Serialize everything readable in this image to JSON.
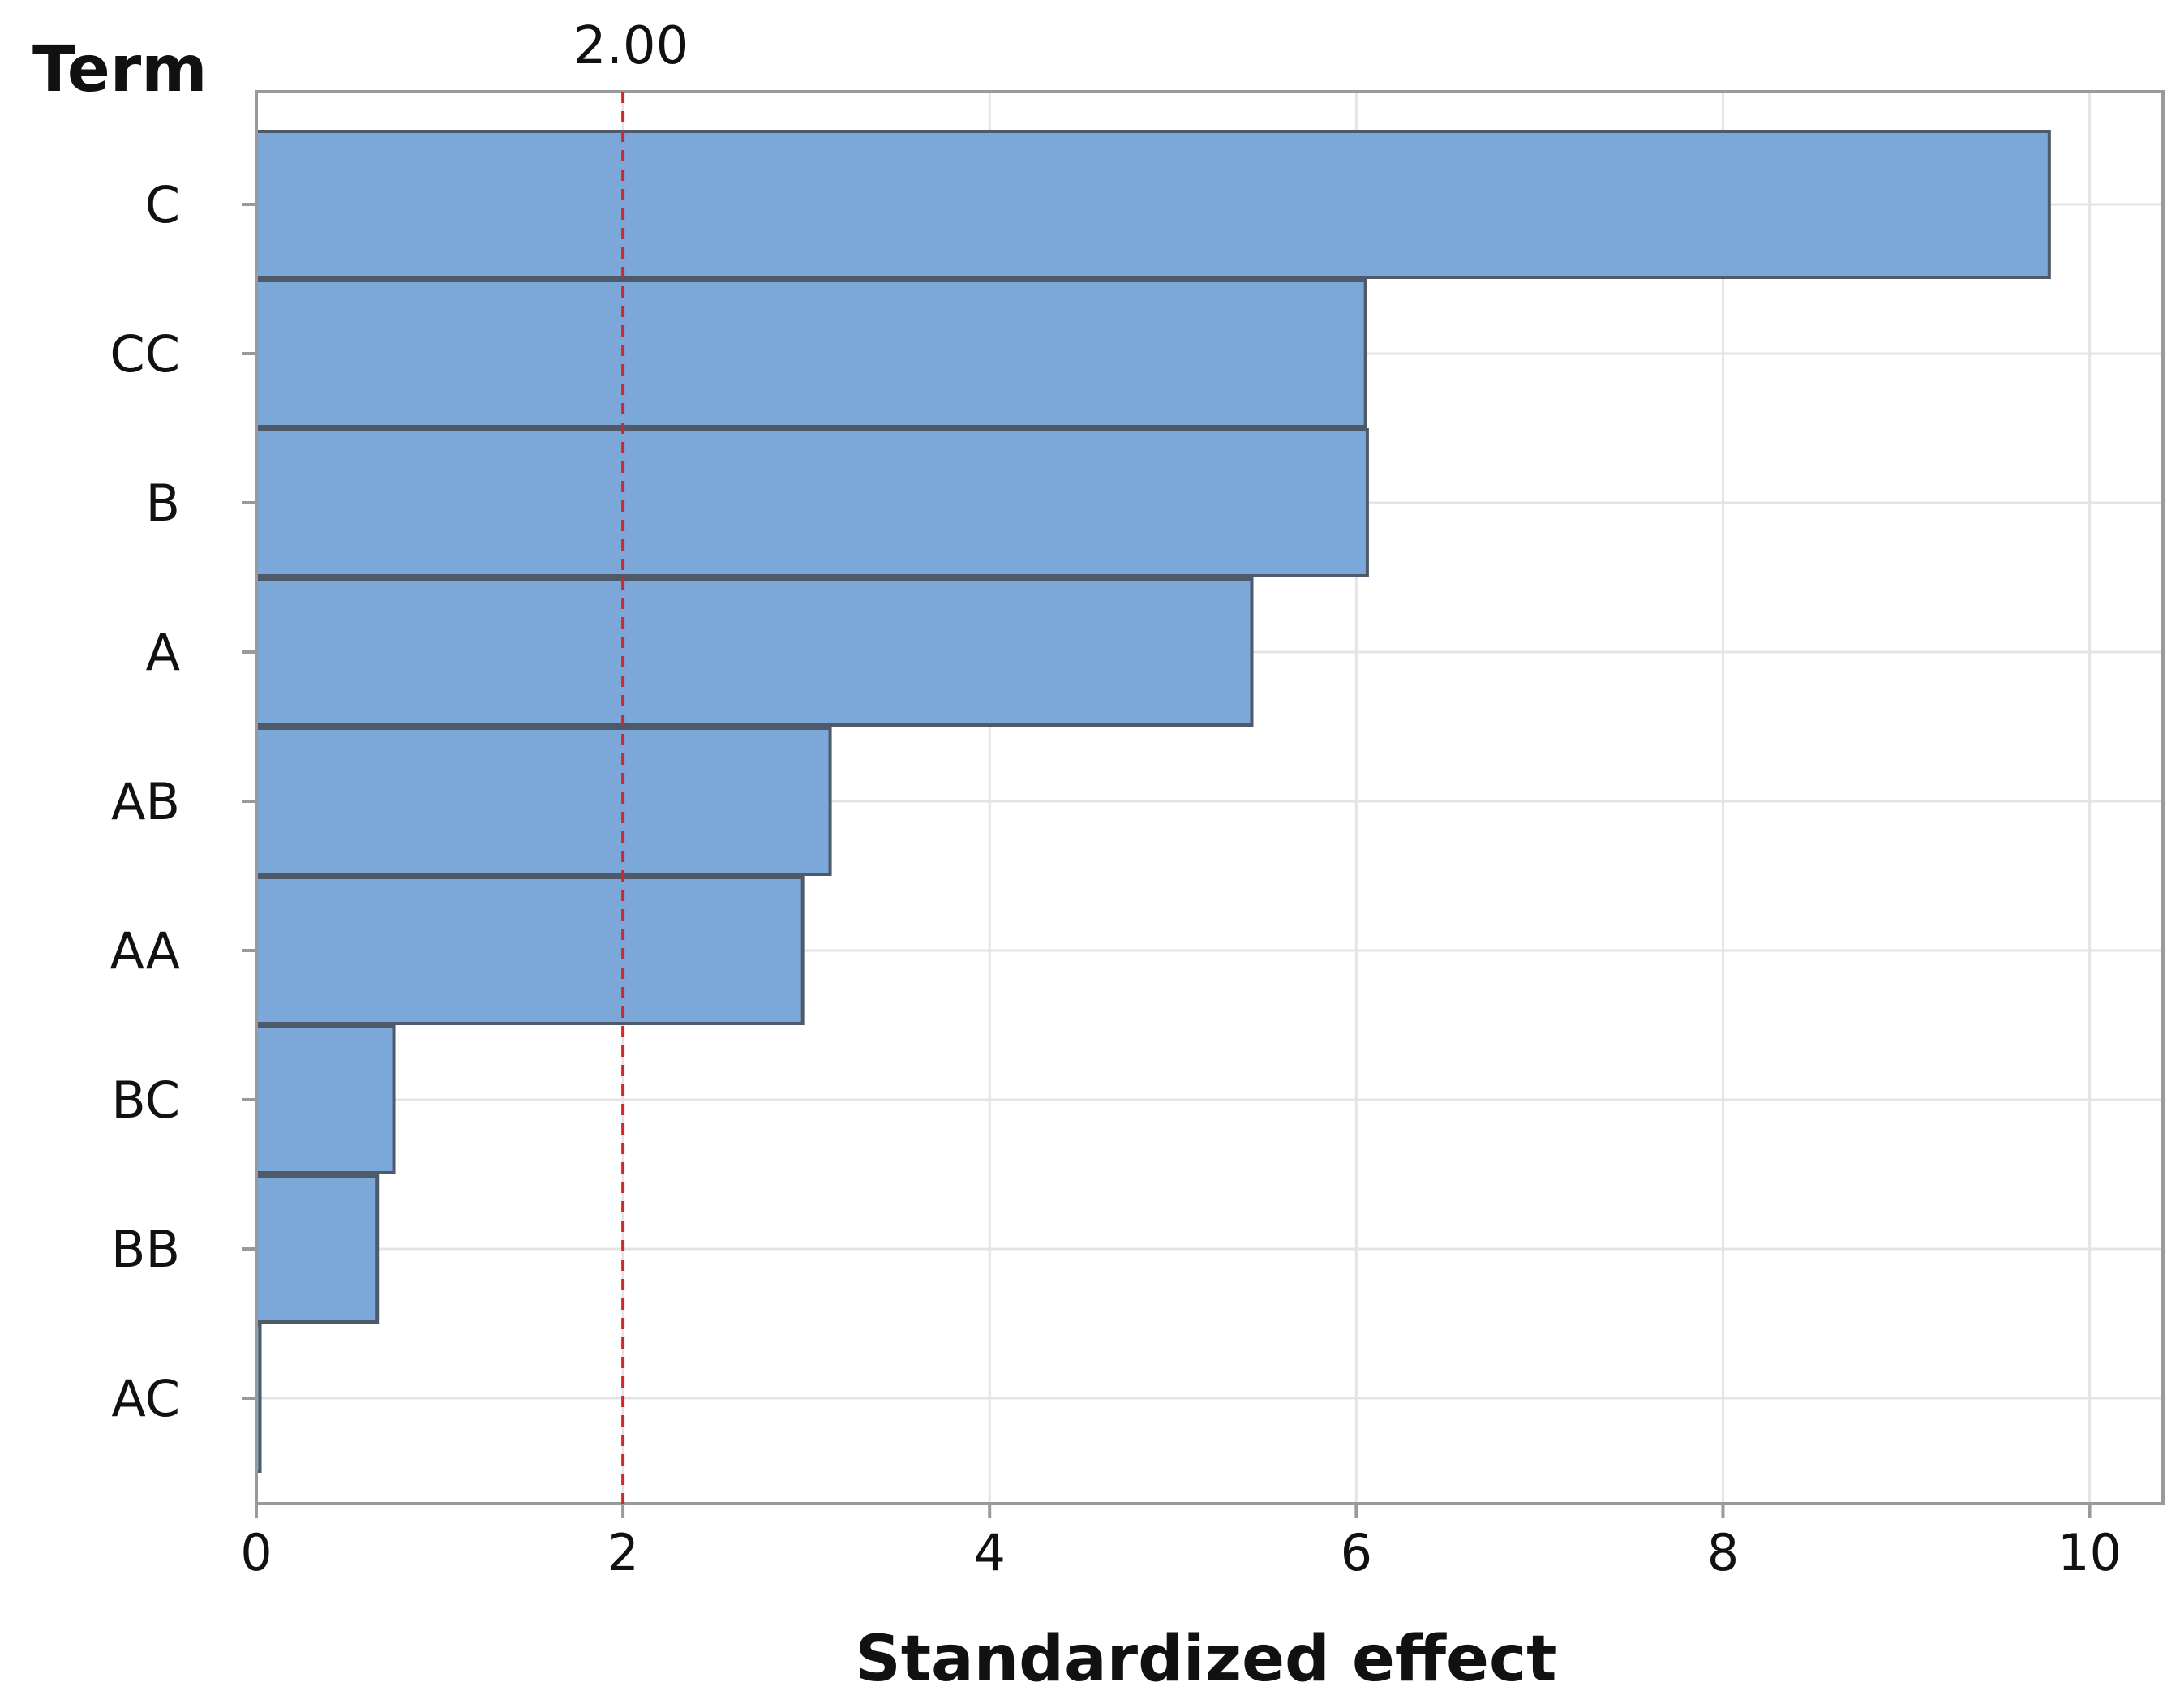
{
  "chart_data": {
    "type": "bar",
    "orientation": "horizontal",
    "title": "",
    "ylabel": "Term",
    "xlabel": "Standardized effect",
    "categories": [
      "C",
      "CC",
      "B",
      "A",
      "AB",
      "AA",
      "BC",
      "BB",
      "AC"
    ],
    "values": [
      9.78,
      6.05,
      6.06,
      5.43,
      3.13,
      2.98,
      0.75,
      0.66,
      0.02
    ],
    "xlim": [
      0,
      10.4
    ],
    "xticks": [
      0,
      2,
      4,
      6,
      8,
      10
    ],
    "xtick_labels": [
      "0",
      "2",
      "4",
      "6",
      "8",
      "10"
    ],
    "reference_line": {
      "value": 2.0,
      "label": "2.00",
      "color": "#cc2a2a",
      "style": "dashed"
    },
    "grid": true,
    "legend": "none",
    "colors": {
      "bar_fill": "#7ba7d9",
      "bar_stroke": "#4f5a68",
      "grid": "#e4e4e4",
      "frame": "#9a9a9a",
      "text": "#111111"
    }
  }
}
